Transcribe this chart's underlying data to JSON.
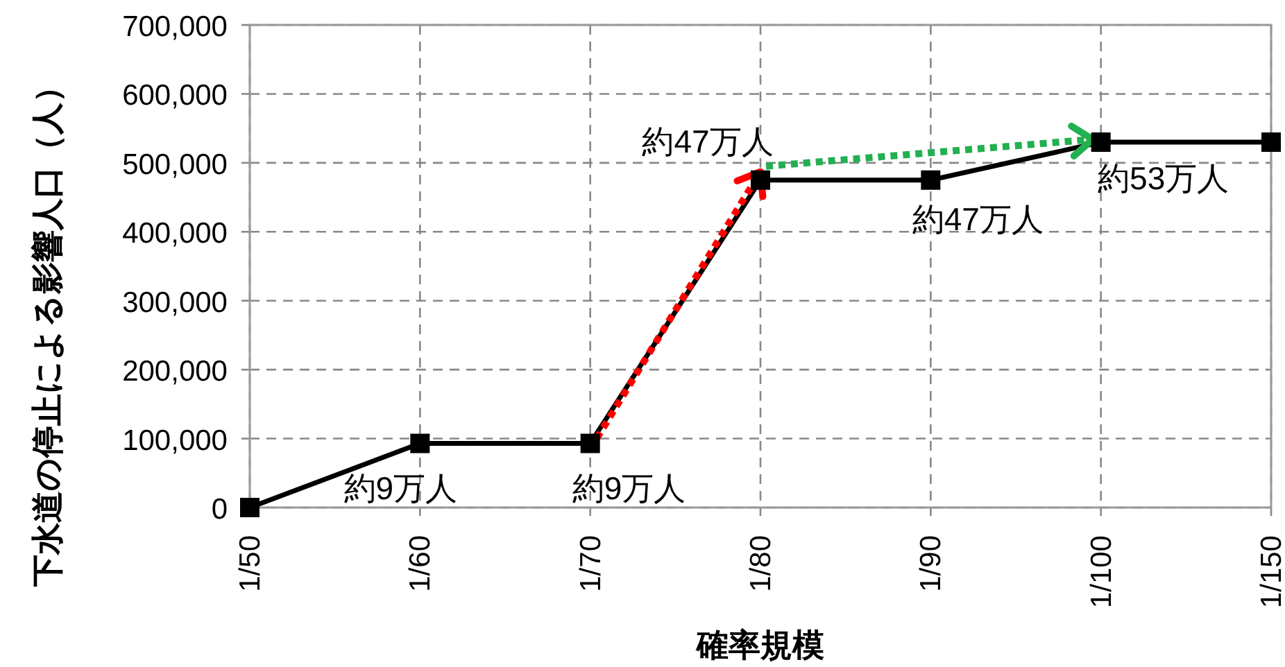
{
  "chart_data": {
    "type": "line",
    "xlabel": "確率規模",
    "ylabel": "下水道の停止による影響人口（人）",
    "categories": [
      "1/50",
      "1/60",
      "1/70",
      "1/80",
      "1/90",
      "1/100",
      "1/150"
    ],
    "series": [
      {
        "color": "#000000",
        "values": [
          0,
          93000,
          93000,
          475000,
          475000,
          530000,
          530000
        ]
      }
    ],
    "ylim": [
      0,
      700000
    ],
    "yticks": [
      {
        "value": 0,
        "label": "0"
      },
      {
        "value": 100000,
        "label": "100,000"
      },
      {
        "value": 200000,
        "label": "200,000"
      },
      {
        "value": 300000,
        "label": "300,000"
      },
      {
        "value": 400000,
        "label": "400,000"
      },
      {
        "value": 500000,
        "label": "500,000"
      },
      {
        "value": 600000,
        "label": "600,000"
      },
      {
        "value": 700000,
        "label": "700,000"
      }
    ],
    "annotations": [
      {
        "text": "約9万人",
        "x": "1/60",
        "y": 93000
      },
      {
        "text": "約9万人",
        "x": "1/70",
        "y": 93000
      },
      {
        "text": "約47万人",
        "x": "1/80",
        "y": 475000
      },
      {
        "text": "約47万人",
        "x": "1/90",
        "y": 475000
      },
      {
        "text": "約53万人",
        "x": "1/100",
        "y": 530000
      }
    ],
    "grid": true,
    "marker": "square",
    "line_style": "solid"
  }
}
